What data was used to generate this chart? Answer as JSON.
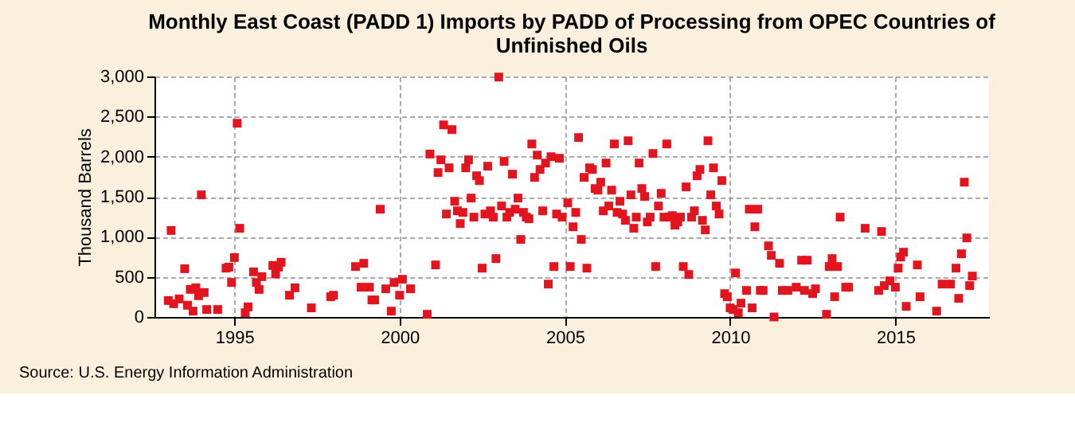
{
  "chart_data": {
    "type": "scatter",
    "title": "Monthly East Coast (PADD 1) Imports by PADD of Processing from OPEC Countries of Unfinished Oils",
    "ylabel": "Thousand Barrels",
    "annotations": [
      "Source: U.S. Energy Information Administration"
    ],
    "x": [
      "1993-01",
      "1993-02",
      "1993-03",
      "1993-05",
      "1993-07",
      "1993-08",
      "1993-09",
      "1993-10",
      "1993-11",
      "1993-12",
      "1994-01",
      "1994-02",
      "1994-03",
      "1994-07",
      "1994-10",
      "1994-11",
      "1994-12",
      "1995-01",
      "1995-02",
      "1995-03",
      "1995-05",
      "1995-06",
      "1995-08",
      "1995-09",
      "1995-10",
      "1995-11",
      "1996-03",
      "1996-04",
      "1996-05",
      "1996-06",
      "1996-09",
      "1996-11",
      "1997-05",
      "1997-12",
      "1998-01",
      "1998-09",
      "1998-11",
      "1998-12",
      "1999-02",
      "1999-03",
      "1999-04",
      "1999-06",
      "1999-08",
      "1999-10",
      "1999-11",
      "2000-01",
      "2000-02",
      "2000-05",
      "2000-11",
      "2000-12",
      "2001-02",
      "2001-03",
      "2001-04",
      "2001-05",
      "2001-06",
      "2001-07",
      "2001-08",
      "2001-09",
      "2001-10",
      "2001-11",
      "2001-12",
      "2002-01",
      "2002-02",
      "2002-03",
      "2002-04",
      "2002-05",
      "2002-06",
      "2002-07",
      "2002-08",
      "2002-09",
      "2002-10",
      "2002-11",
      "2002-12",
      "2003-01",
      "2003-02",
      "2003-03",
      "2003-04",
      "2003-05",
      "2003-06",
      "2003-07",
      "2003-08",
      "2003-09",
      "2003-10",
      "2003-11",
      "2003-12",
      "2004-01",
      "2004-02",
      "2004-03",
      "2004-04",
      "2004-05",
      "2004-06",
      "2004-07",
      "2004-08",
      "2004-09",
      "2004-10",
      "2004-11",
      "2004-12",
      "2005-02",
      "2005-03",
      "2005-04",
      "2005-05",
      "2005-06",
      "2005-07",
      "2005-08",
      "2005-09",
      "2005-10",
      "2005-11",
      "2005-12",
      "2006-01",
      "2006-02",
      "2006-03",
      "2006-04",
      "2006-05",
      "2006-06",
      "2006-07",
      "2006-08",
      "2006-09",
      "2006-10",
      "2006-11",
      "2006-12",
      "2007-01",
      "2007-02",
      "2007-03",
      "2007-04",
      "2007-05",
      "2007-06",
      "2007-07",
      "2007-08",
      "2007-09",
      "2007-10",
      "2007-11",
      "2007-12",
      "2008-01",
      "2008-02",
      "2008-03",
      "2008-04",
      "2008-05",
      "2008-06",
      "2008-07",
      "2008-08",
      "2008-09",
      "2008-10",
      "2008-11",
      "2008-12",
      "2009-01",
      "2009-02",
      "2009-03",
      "2009-04",
      "2009-05",
      "2009-06",
      "2009-07",
      "2009-08",
      "2009-09",
      "2009-10",
      "2009-11",
      "2009-12",
      "2010-01",
      "2010-02",
      "2010-03",
      "2010-04",
      "2010-05",
      "2010-07",
      "2010-08",
      "2010-09",
      "2010-10",
      "2010-11",
      "2010-12",
      "2011-01",
      "2011-03",
      "2011-04",
      "2011-05",
      "2011-07",
      "2011-08",
      "2011-10",
      "2012-01",
      "2012-03",
      "2012-04",
      "2012-05",
      "2012-07",
      "2012-08",
      "2012-12",
      "2013-01",
      "2013-02",
      "2013-03",
      "2013-04",
      "2013-05",
      "2013-07",
      "2013-08",
      "2014-02",
      "2014-07",
      "2014-08",
      "2014-09",
      "2014-11",
      "2015-01",
      "2015-02",
      "2015-03",
      "2015-04",
      "2015-05",
      "2015-09",
      "2015-10",
      "2016-04",
      "2016-06",
      "2016-09",
      "2016-11",
      "2016-12",
      "2017-01",
      "2017-02",
      "2017-03",
      "2017-04",
      "2017-05"
    ],
    "series": [
      {
        "color": "#e2141e",
        "values": [
          205,
          1079,
          165,
          225,
          602,
          146,
          344,
          73,
          364,
          265,
          1523,
          305,
          93,
          93,
          609,
          622,
          430,
          741,
          2416,
          1106,
          53,
          126,
          563,
          430,
          344,
          503,
          642,
          536,
          622,
          682,
          271,
          364,
          113,
          252,
          271,
          629,
          371,
          669,
          371,
          212,
          212,
          1344,
          351,
          73,
          430,
          271,
          470,
          351,
          33,
          2032,
          649,
          1801,
          1960,
          2396,
          1284,
          1860,
          2337,
          1443,
          1324,
          1165,
          1304,
          1860,
          1960,
          1483,
          1245,
          1761,
          1701,
          609,
          1284,
          1880,
          1324,
          1245,
          728,
          2992,
          1384,
          1940,
          1245,
          1304,
          1781,
          1344,
          1483,
          967,
          1304,
          1245,
          1225,
          2158,
          1741,
          2019,
          1840,
          1324,
          1920,
          410,
          1999,
          629,
          1284,
          1979,
          1245,
          1423,
          629,
          1125,
          1304,
          2238,
          967,
          1741,
          609,
          1860,
          1840,
          1602,
          1582,
          1681,
          1324,
          1920,
          1384,
          1582,
          2158,
          1304,
          1443,
          1284,
          1205,
          2198,
          1523,
          1106,
          1245,
          1920,
          1602,
          1503,
          1185,
          1245,
          2039,
          629,
          1384,
          1542,
          1245,
          2158,
          1245,
          1264,
          1145,
          1185,
          1245,
          629,
          1622,
          530,
          1245,
          1324,
          1761,
          1840,
          1205,
          1086,
          2198,
          1523,
          1860,
          1384,
          1284,
          1701,
          291,
          252,
          113,
          93,
          549,
          53,
          172,
          331,
          1344,
          113,
          1125,
          1344,
          331,
          331,
          887,
          768,
          0,
          669,
          331,
          331,
          371,
          708,
          331,
          708,
          291,
          351,
          33,
          629,
          728,
          252,
          629,
          1245,
          371,
          371,
          1106,
          331,
          1066,
          391,
          450,
          371,
          609,
          748,
          808,
          132,
          649,
          252,
          73,
          410,
          410,
          609,
          232,
          788,
          1681,
          986,
          391,
          510
        ]
      }
    ],
    "xlim": [
      "1992-08",
      "2017-11"
    ],
    "xticks": [
      "1995",
      "2000",
      "2005",
      "2010",
      "2015"
    ],
    "ylim": [
      0,
      3000
    ],
    "yticks": [
      0,
      {
        "value": 500,
        "label": "500"
      },
      {
        "value": 1000,
        "label": "1,000"
      },
      {
        "value": 1500,
        "label": "1,500"
      },
      {
        "value": 2000,
        "label": "2,000"
      },
      {
        "value": 2500,
        "label": "2,500"
      },
      {
        "value": 3000,
        "label": "3,000"
      }
    ],
    "marker": "square",
    "grid": true,
    "legend": false
  }
}
